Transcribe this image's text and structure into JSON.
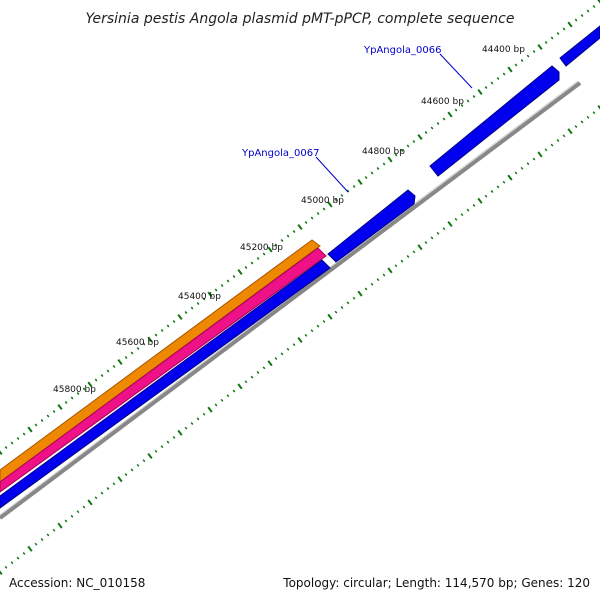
{
  "title": "Yersinia pestis Angola plasmid pMT-pPCP, complete sequence",
  "footer": {
    "accession": "Accession: NC_010158",
    "summary": "Topology: circular; Length: 114,570 bp; Genes: 120"
  },
  "colors": {
    "forward_genes": "#0000ee",
    "reverse_genes": "#0000ee",
    "backbone": "#888888",
    "ticks": "#117711",
    "orange_feature": "#ee8800",
    "pink_feature": "#ee1188",
    "label_text": "#0000cc"
  },
  "ticks": [
    {
      "label": "44400 bp"
    },
    {
      "label": "44600 bp"
    },
    {
      "label": "44800 bp"
    },
    {
      "label": "45000 bp"
    },
    {
      "label": "45200 bp"
    },
    {
      "label": "45400 bp"
    },
    {
      "label": "45600 bp"
    },
    {
      "label": "45800 bp"
    }
  ],
  "gene_labels": [
    {
      "label": "YpAngola_0066"
    },
    {
      "label": "YpAngola_0067"
    }
  ]
}
